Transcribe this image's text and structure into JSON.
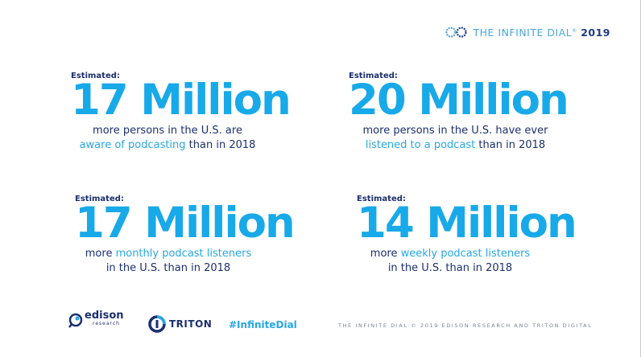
{
  "header": {
    "brand_prefix": "THE ",
    "brand_name": "INFINITE DIAL",
    "brand_mark": "®",
    "brand_year": "2019",
    "logo_icon": "infinite-dial-loop-icon"
  },
  "stats": [
    {
      "estimated": "Estimated:",
      "big": "17 Million",
      "line1_plain": "more persons in the U.S. are",
      "line2_highlight": "aware of podcasting",
      "line2_plain": " than in 2018"
    },
    {
      "estimated": "Estimated:",
      "big": "20 Million",
      "line1_plain": "more persons in the U.S. have ever",
      "line2_highlight": "listened to a podcast",
      "line2_plain": " than in 2018"
    },
    {
      "estimated": "Estimated:",
      "big": "17 Million",
      "line1_plain": "more ",
      "line1_highlight": "monthly podcast listeners",
      "line2_plain": "in the U.S. than in 2018"
    },
    {
      "estimated": "Estimated:",
      "big": "14 Million",
      "line1_plain": "more ",
      "line1_highlight": "weekly podcast listeners",
      "line2_plain": "in the U.S. than in 2018"
    }
  ],
  "footer": {
    "edison_name": "edison",
    "edison_sub": "research",
    "triton_name": "TRITON",
    "hashtag": "#InfiniteDial",
    "copyright": "THE INFINITE DIAL   © 2019 EDISON RESEARCH AND TRITON DIGITAL"
  },
  "colors": {
    "accent_blue": "#18a9e8",
    "navy": "#1b2f6f",
    "highlight": "#27a7e6"
  }
}
